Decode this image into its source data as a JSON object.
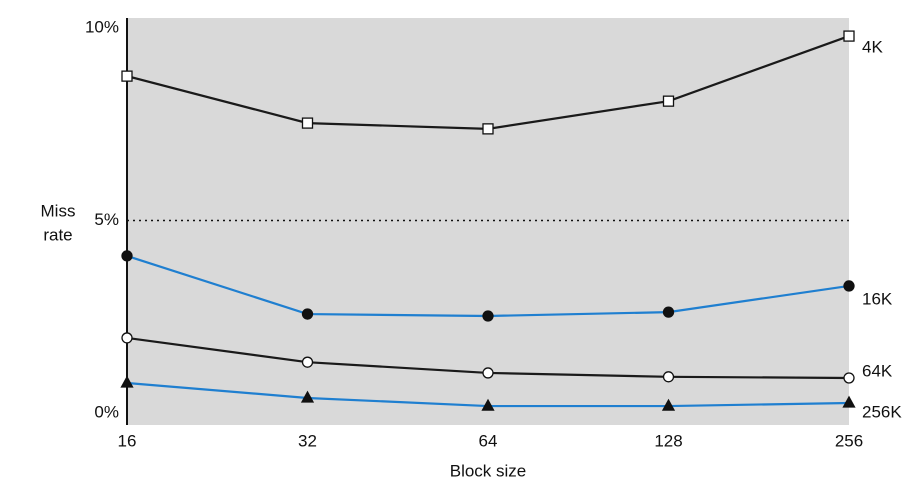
{
  "chart_data": {
    "type": "line",
    "xlabel": "Block size",
    "ylabel": [
      "Miss",
      "rate"
    ],
    "categories": [
      "16",
      "32",
      "64",
      "128",
      "256"
    ],
    "ylim": [
      0,
      10
    ],
    "yticks": [
      {
        "value": 0,
        "label": "0%"
      },
      {
        "value": 5,
        "label": "5%"
      },
      {
        "value": 10,
        "label": "10%"
      }
    ],
    "background": "#d9d9d9",
    "series": [
      {
        "name": "4K",
        "color": "#1a1a1a",
        "marker": "open-square",
        "values": [
          8.75,
          7.53,
          7.38,
          8.1,
          9.79
        ]
      },
      {
        "name": "16K",
        "color": "#1f7fd0",
        "marker": "filled-circle",
        "values": [
          4.08,
          2.57,
          2.52,
          2.62,
          3.3
        ]
      },
      {
        "name": "64K",
        "color": "#1a1a1a",
        "marker": "open-circle",
        "values": [
          1.95,
          1.32,
          1.04,
          0.94,
          0.91
        ]
      },
      {
        "name": "256K",
        "color": "#1f7fd0",
        "marker": "filled-triangle",
        "values": [
          0.78,
          0.39,
          0.18,
          0.18,
          0.26
        ]
      }
    ]
  }
}
